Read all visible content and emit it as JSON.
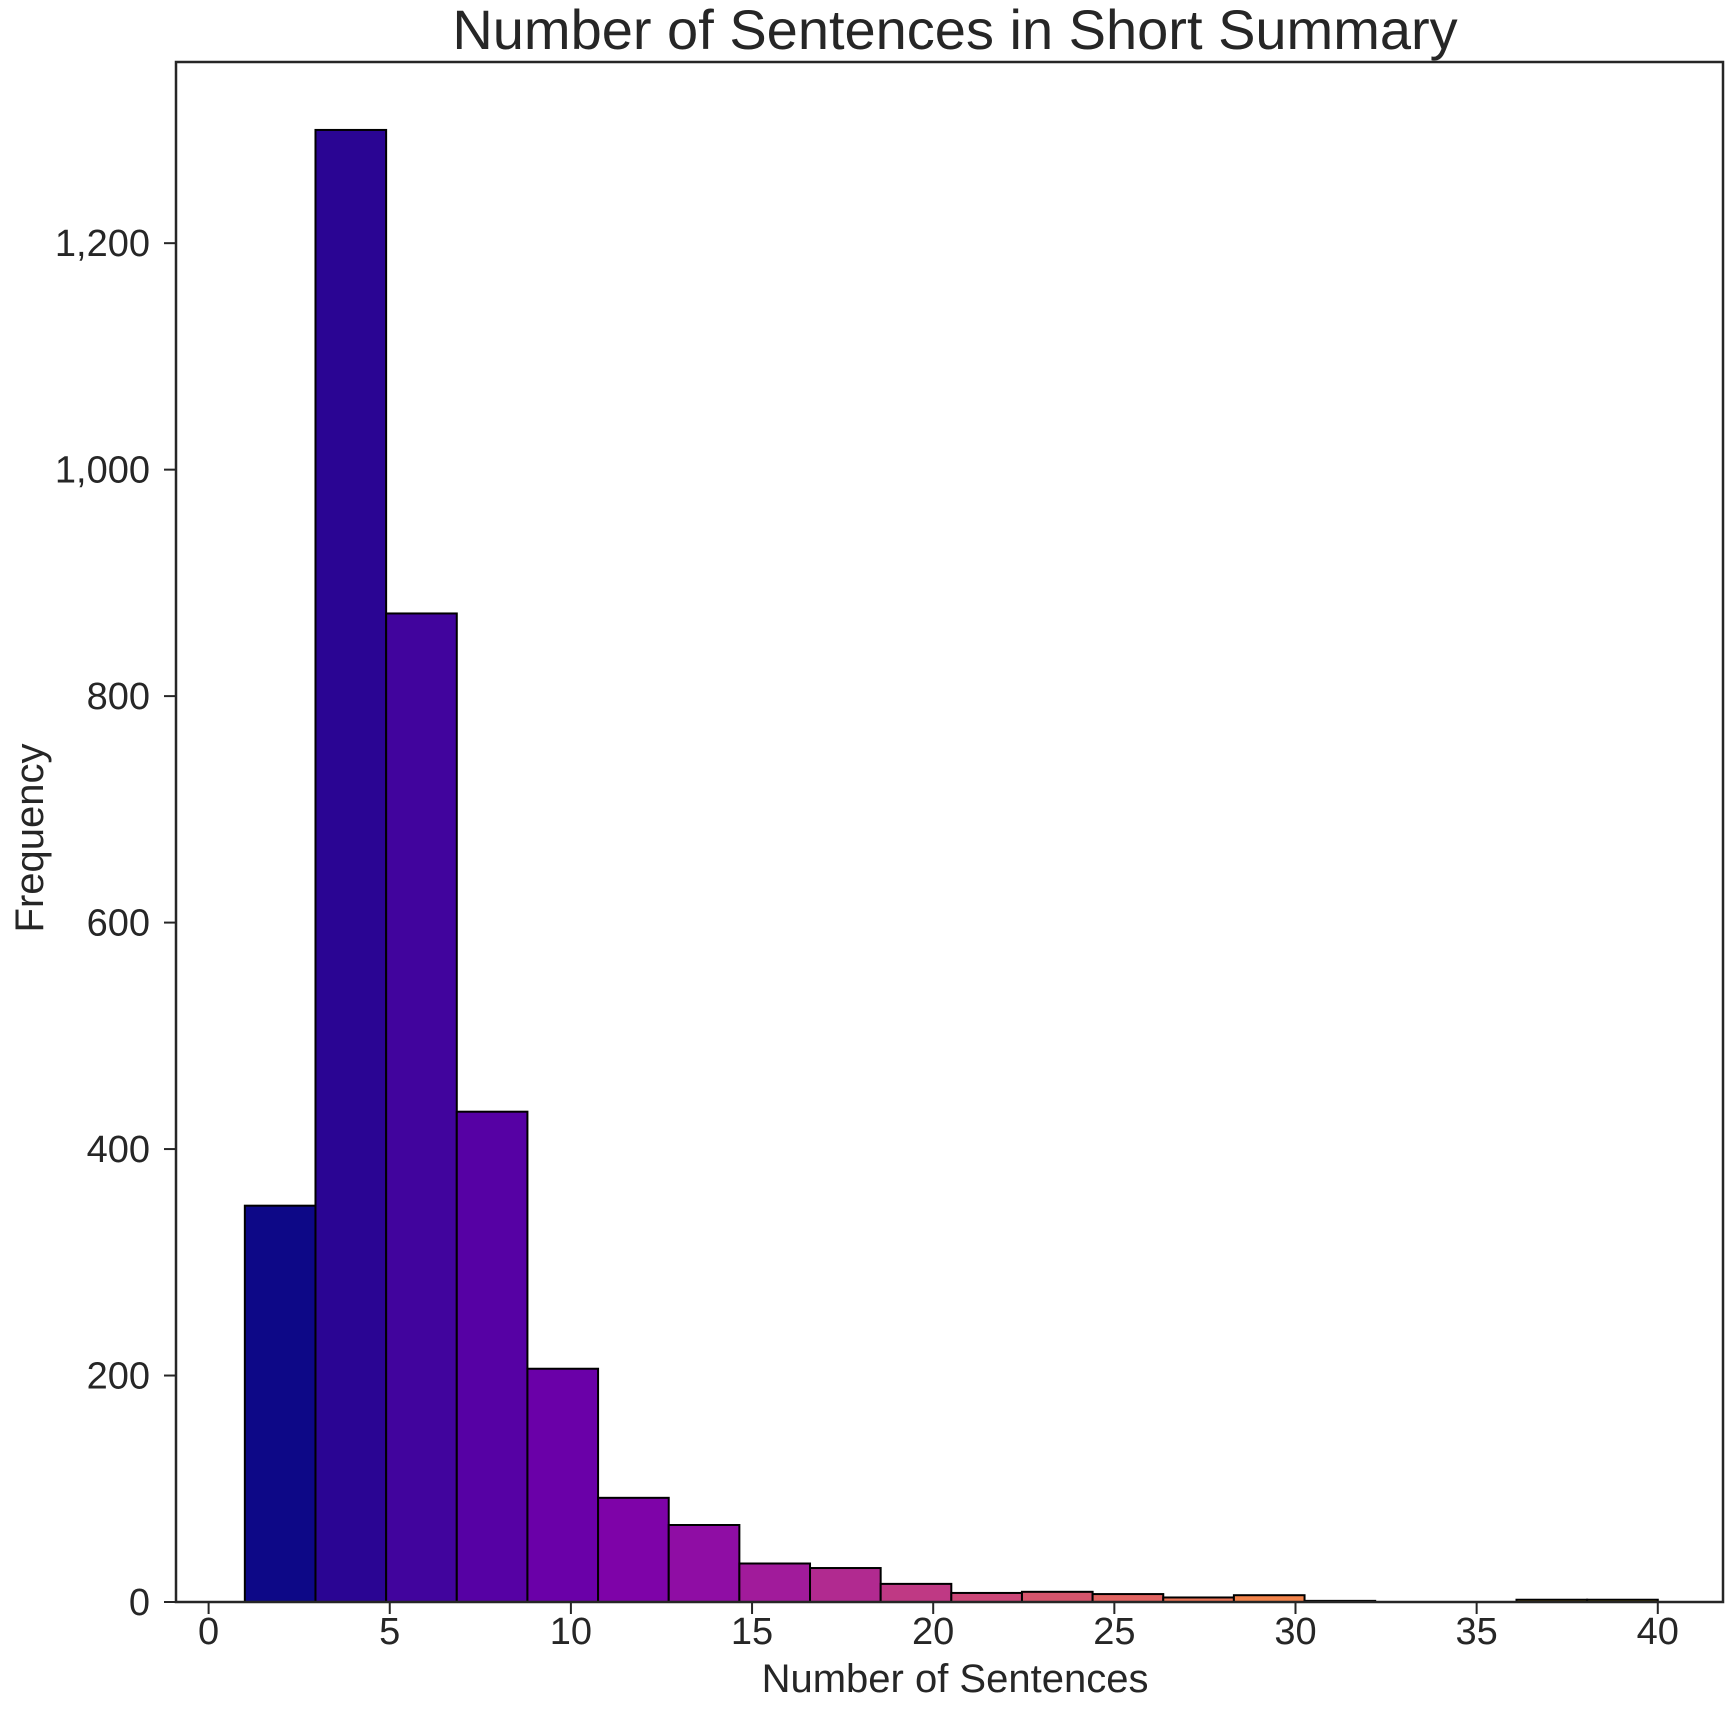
{
  "chart_data": {
    "type": "bar",
    "title": "Number of Sentences in Short Summary",
    "xlabel": "Number of Sentences",
    "ylabel": "Frequency",
    "xlim": [
      -0.9,
      41.8
    ],
    "ylim": [
      0,
      1360
    ],
    "x_ticks": [
      0,
      5,
      10,
      15,
      20,
      25,
      30,
      35,
      40
    ],
    "y_ticks": [
      0,
      200,
      400,
      600,
      800,
      1000,
      1200
    ],
    "y_tick_labels": [
      "0",
      "200",
      "400",
      "600",
      "800",
      "1,000",
      "1,200"
    ],
    "bin_edges": [
      1.0,
      2.95,
      4.9,
      6.85,
      8.8,
      10.75,
      12.7,
      14.65,
      16.6,
      18.55,
      20.5,
      22.45,
      24.4,
      26.35,
      28.3,
      30.25,
      32.2,
      34.15,
      36.1,
      38.05,
      40.0
    ],
    "values": [
      350,
      1300,
      873,
      433,
      206,
      92,
      68,
      34,
      30,
      16,
      8,
      9,
      7,
      4,
      6,
      1,
      0,
      0,
      2,
      2
    ],
    "colors": [
      "#0d0887",
      "#2a0593",
      "#41049d",
      "#5601a4",
      "#6a00a8",
      "#7e03a8",
      "#8f0da4",
      "#a11b9b",
      "#b12a90",
      "#bf3984",
      "#cc4778",
      "#d6556d",
      "#e16462",
      "#ea7457",
      "#f2844b",
      "#f89540",
      "#fca636",
      "#feb72d",
      "#fdc926",
      "#f8df25"
    ],
    "grid": false
  }
}
